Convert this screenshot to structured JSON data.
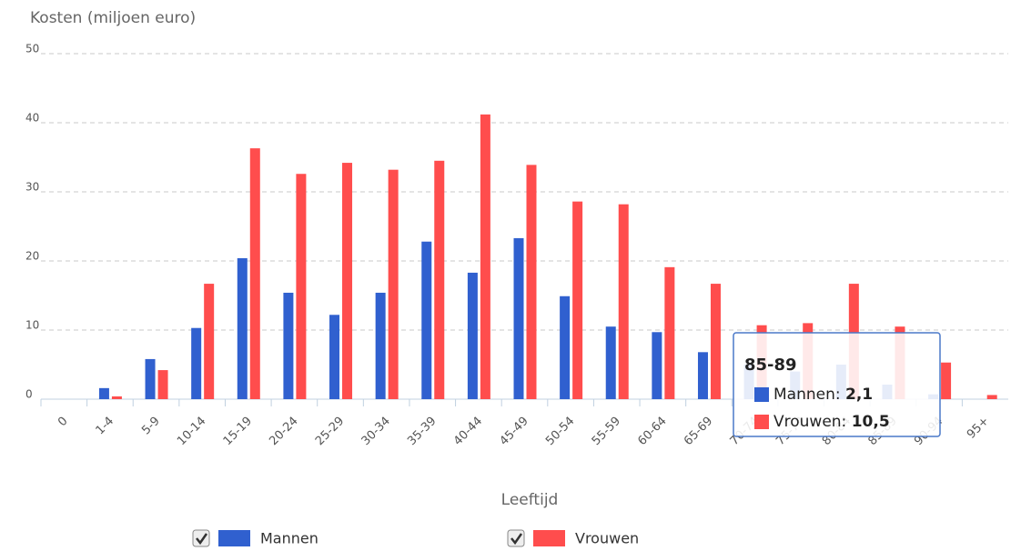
{
  "chart_data": {
    "type": "bar",
    "y_axis_title": "Kosten (miljoen euro)",
    "x_axis_title": "Leeftijd",
    "categories": [
      "0",
      "1-4",
      "5-9",
      "10-14",
      "15-19",
      "20-24",
      "25-29",
      "30-34",
      "35-39",
      "40-44",
      "45-49",
      "50-54",
      "55-59",
      "60-64",
      "65-69",
      "70-74",
      "75-79",
      "80-84",
      "85-89",
      "90-94",
      "95+"
    ],
    "series": [
      {
        "name": "Mannen",
        "color": "#3060cf",
        "values": [
          0,
          1.6,
          5.8,
          10.3,
          20.4,
          15.4,
          12.2,
          15.4,
          22.8,
          18.3,
          23.3,
          14.9,
          10.5,
          9.7,
          6.8,
          5.0,
          4.0,
          5.0,
          2.1,
          0.7,
          0
        ]
      },
      {
        "name": "Vrouwen",
        "color": "#ff4d4d",
        "values": [
          0,
          0.4,
          4.2,
          16.7,
          36.3,
          32.6,
          34.2,
          33.2,
          34.5,
          41.2,
          33.9,
          28.6,
          28.2,
          19.1,
          16.7,
          10.7,
          11.0,
          16.7,
          10.5,
          5.3,
          0.6
        ]
      }
    ],
    "ylim": [
      0,
      50
    ],
    "yticks": [
      0,
      10,
      20,
      30,
      40,
      50
    ],
    "grid": true,
    "tooltip": {
      "title": "85-89",
      "rows": [
        {
          "label": "Mannen:",
          "value": "2,1"
        },
        {
          "label": "Vrouwen:",
          "value": "10,5"
        }
      ]
    }
  }
}
